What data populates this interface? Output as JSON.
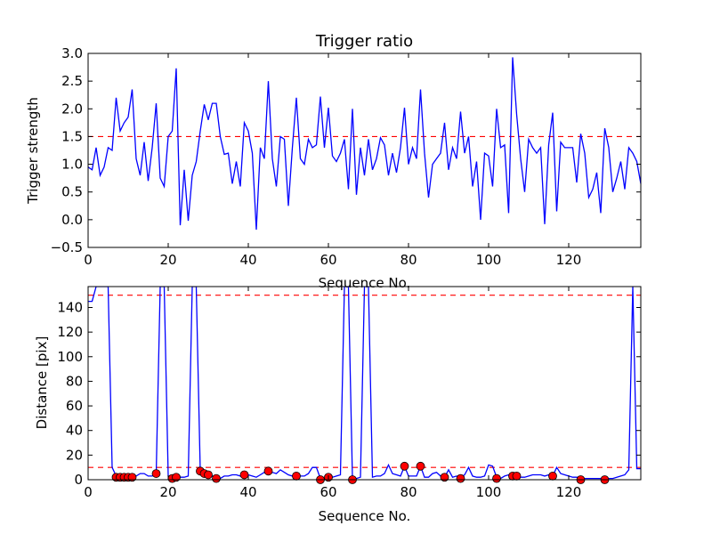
{
  "chart_data": [
    {
      "type": "line",
      "title": "Trigger ratio",
      "xlabel": "Sequence No.",
      "ylabel": "Trigger strength",
      "xlim": [
        0,
        138
      ],
      "ylim": [
        -0.5,
        3.0
      ],
      "xticks": [
        "0",
        "20",
        "40",
        "60",
        "80",
        "100",
        "120"
      ],
      "yticks": [
        "−0.5",
        "0.0",
        "0.5",
        "1.0",
        "1.5",
        "2.0",
        "2.5",
        "3.0"
      ],
      "threshold": 1.5,
      "line_color": "#0000ff",
      "threshold_color": "#ff0000",
      "x": [
        0,
        1,
        2,
        3,
        4,
        5,
        6,
        7,
        8,
        9,
        10,
        11,
        12,
        13,
        14,
        15,
        16,
        17,
        18,
        19,
        20,
        21,
        22,
        23,
        24,
        25,
        26,
        27,
        28,
        29,
        30,
        31,
        32,
        33,
        34,
        35,
        36,
        37,
        38,
        39,
        40,
        41,
        42,
        43,
        44,
        45,
        46,
        47,
        48,
        49,
        50,
        51,
        52,
        53,
        54,
        55,
        56,
        57,
        58,
        59,
        60,
        61,
        62,
        63,
        64,
        65,
        66,
        67,
        68,
        69,
        70,
        71,
        72,
        73,
        74,
        75,
        76,
        77,
        78,
        79,
        80,
        81,
        82,
        83,
        84,
        85,
        86,
        87,
        88,
        89,
        90,
        91,
        92,
        93,
        94,
        95,
        96,
        97,
        98,
        99,
        100,
        101,
        102,
        103,
        104,
        105,
        106,
        107,
        108,
        109,
        110,
        111,
        112,
        113,
        114,
        115,
        116,
        117,
        118,
        119,
        120,
        121,
        122,
        123,
        124,
        125,
        126,
        127,
        128,
        129,
        130,
        131,
        132,
        133,
        134,
        135,
        136,
        137,
        138
      ],
      "y": [
        0.95,
        0.9,
        1.3,
        0.8,
        0.95,
        1.3,
        1.25,
        2.2,
        1.6,
        1.75,
        1.85,
        2.35,
        1.1,
        0.8,
        1.4,
        0.7,
        1.3,
        2.1,
        0.75,
        0.6,
        1.5,
        1.6,
        2.73,
        -0.1,
        0.9,
        -0.02,
        0.8,
        1.05,
        1.6,
        2.08,
        1.8,
        2.1,
        2.1,
        1.5,
        1.18,
        1.2,
        0.65,
        1.05,
        0.6,
        1.75,
        1.6,
        1.2,
        -0.18,
        1.3,
        1.1,
        2.5,
        1.1,
        0.6,
        1.5,
        1.45,
        0.25,
        1.3,
        2.2,
        1.1,
        1.0,
        1.45,
        1.3,
        1.35,
        2.22,
        1.3,
        2.02,
        1.15,
        1.05,
        1.2,
        1.45,
        0.55,
        2.0,
        0.45,
        1.3,
        0.8,
        1.45,
        0.9,
        1.1,
        1.48,
        1.35,
        0.8,
        1.2,
        0.85,
        1.3,
        2.02,
        1.0,
        1.3,
        1.1,
        2.35,
        1.2,
        0.4,
        1.0,
        1.1,
        1.2,
        1.75,
        0.9,
        1.3,
        1.1,
        1.95,
        1.2,
        1.5,
        0.6,
        1.05,
        0.0,
        1.2,
        1.15,
        0.6,
        2.0,
        1.3,
        1.35,
        0.12,
        2.93,
        1.9,
        1.1,
        0.5,
        1.45,
        1.3,
        1.2,
        1.3,
        -0.08,
        1.35,
        1.93,
        0.15,
        1.4,
        1.3,
        1.3,
        1.3,
        0.67,
        1.55,
        1.2,
        0.4,
        0.55,
        0.85,
        0.12,
        1.65,
        1.3,
        0.5,
        0.75,
        1.05,
        0.55,
        1.3,
        1.2,
        1.05,
        0.65
      ]
    },
    {
      "type": "line",
      "xlabel": "Sequence No.",
      "ylabel": "Distance [pix]",
      "xlim": [
        0,
        138
      ],
      "ylim": [
        0,
        157
      ],
      "xticks": [
        "0",
        "20",
        "40",
        "60",
        "80",
        "100",
        "120"
      ],
      "yticks": [
        "0",
        "20",
        "40",
        "60",
        "80",
        "100",
        "120",
        "140"
      ],
      "thresholds": [
        10,
        150
      ],
      "line_color": "#0000ff",
      "threshold_color": "#ff0000",
      "marker_color": "#ff0000",
      "x": [
        0,
        1,
        2,
        3,
        4,
        5,
        6,
        7,
        8,
        9,
        10,
        11,
        12,
        13,
        14,
        15,
        16,
        17,
        18,
        19,
        20,
        21,
        22,
        23,
        24,
        25,
        26,
        27,
        28,
        29,
        30,
        31,
        32,
        33,
        34,
        35,
        36,
        37,
        38,
        39,
        40,
        41,
        42,
        43,
        44,
        45,
        46,
        47,
        48,
        49,
        50,
        51,
        52,
        53,
        54,
        55,
        56,
        57,
        58,
        59,
        60,
        61,
        62,
        63,
        64,
        65,
        66,
        67,
        68,
        69,
        70,
        71,
        72,
        73,
        74,
        75,
        76,
        77,
        78,
        79,
        80,
        81,
        82,
        83,
        84,
        85,
        86,
        87,
        88,
        89,
        90,
        91,
        92,
        93,
        94,
        95,
        96,
        97,
        98,
        99,
        100,
        101,
        102,
        103,
        104,
        105,
        106,
        107,
        108,
        109,
        110,
        111,
        112,
        113,
        114,
        115,
        116,
        117,
        118,
        119,
        120,
        121,
        122,
        123,
        124,
        125,
        126,
        127,
        128,
        129,
        130,
        131,
        132,
        133,
        134,
        135,
        136,
        137,
        138
      ],
      "y": [
        145,
        145,
        157,
        157,
        157,
        157,
        10,
        3,
        3,
        3,
        3,
        3,
        3,
        5,
        5,
        3,
        3,
        5,
        157,
        157,
        3,
        2,
        2,
        2,
        2,
        3,
        157,
        157,
        7,
        5,
        4,
        3,
        2,
        1,
        3,
        3,
        4,
        4,
        3,
        4,
        4,
        3,
        2,
        4,
        6,
        8,
        6,
        5,
        8,
        6,
        4,
        3,
        4,
        3,
        3,
        5,
        10,
        10,
        1,
        1,
        2,
        2,
        3,
        4,
        157,
        157,
        1,
        1,
        2,
        157,
        157,
        2,
        3,
        3,
        5,
        12,
        5,
        4,
        3,
        11,
        3,
        3,
        3,
        11,
        2,
        2,
        5,
        6,
        3,
        2,
        8,
        2,
        3,
        2,
        4,
        10,
        3,
        2,
        2,
        3,
        12,
        11,
        2,
        1,
        3,
        4,
        3,
        3,
        2,
        2,
        3,
        4,
        4,
        4,
        3,
        4,
        3,
        10,
        5,
        4,
        3,
        2,
        2,
        1,
        1,
        1,
        1,
        1,
        1,
        1,
        1,
        1,
        2,
        3,
        4,
        8,
        157,
        9,
        9
      ],
      "markers_x": [
        7,
        8,
        9,
        10,
        11,
        17,
        21,
        22,
        28,
        29,
        30,
        32,
        39,
        45,
        52,
        58,
        60,
        66,
        79,
        83,
        89,
        93,
        102,
        106,
        107,
        116,
        123,
        129
      ],
      "markers_y": [
        2,
        2,
        2,
        2,
        2,
        5,
        1,
        2,
        7,
        5,
        4,
        1,
        4,
        7,
        3,
        0,
        2,
        0,
        11,
        11,
        2,
        1,
        1,
        3,
        3,
        3,
        0,
        0
      ]
    }
  ]
}
